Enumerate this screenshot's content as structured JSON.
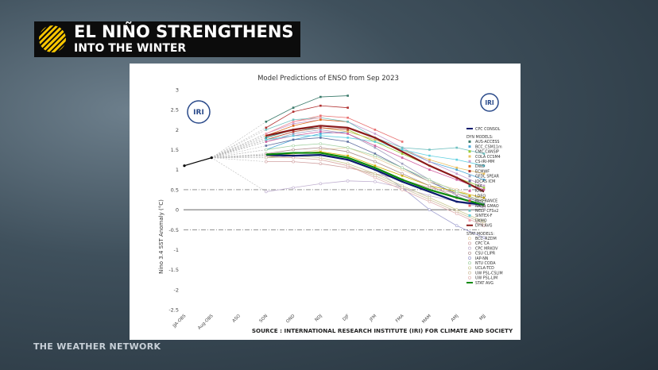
{
  "header": {
    "title": "EL NIÑO STRENGTHENS",
    "subtitle": "INTO THE WINTER"
  },
  "brand": "THE WEATHER NETWORK",
  "logos": [
    "IRI",
    "IRI"
  ],
  "chart_data": {
    "type": "line",
    "title": "Model Predictions of ENSO from Sep 2023",
    "ylabel": "Nino 3.4 SST Anomaly (°C)",
    "source": "SOURCE : INTERNATIONAL RESEARCH INSTITUTE (IRI) FOR CLIMATE AND SOCIETY",
    "categories": [
      "JJA-OBS",
      "Aug-OBS",
      "ASO",
      "SON",
      "OND",
      "NDJ",
      "DJF",
      "JFM",
      "FMA",
      "MAM",
      "AMJ",
      "MJJ"
    ],
    "ylim": [
      -2.5,
      3
    ],
    "yticks": [
      -2.5,
      -2,
      -1.5,
      -1,
      -0.5,
      0,
      0.5,
      1,
      1.5,
      2,
      2.5,
      3
    ],
    "threshold_lines": [
      -0.5,
      0.5
    ],
    "observed": {
      "color": "#000000",
      "values": [
        1.1,
        1.3,
        null,
        null,
        null,
        null,
        null,
        null,
        null,
        null,
        null,
        null
      ]
    },
    "groups": [
      {
        "marker": "square",
        "series": [
          {
            "name": "CPC CONSOL",
            "color": "#0a1a6e",
            "style": "bold",
            "values": [
              null,
              null,
              null,
              1.37,
              1.35,
              1.37,
              1.25,
              1.0,
              0.7,
              0.45,
              0.2,
              0.12
            ]
          }
        ]
      },
      {
        "name": "DYN MODELS:",
        "marker": "square",
        "series": [
          {
            "name": "AUS-ACCESS",
            "color": "#3a7a6a",
            "values": [
              null,
              null,
              null,
              2.2,
              2.55,
              2.82,
              2.85,
              null,
              null,
              null,
              null,
              null
            ]
          },
          {
            "name": "BCC_CSM11m",
            "color": "#4aa8d8",
            "values": [
              null,
              null,
              null,
              1.5,
              1.75,
              1.9,
              1.95,
              1.75,
              1.5,
              1.2,
              1.0,
              0.75
            ]
          },
          {
            "name": "CMC CANSIP",
            "color": "#9acd32",
            "values": [
              null,
              null,
              null,
              1.75,
              1.95,
              2.05,
              2.0,
              1.7,
              1.4,
              1.1,
              0.8,
              0.55
            ]
          },
          {
            "name": "COLA CCSM4",
            "color": "#e8c060",
            "values": [
              null,
              null,
              null,
              1.8,
              2.0,
              2.05,
              1.95,
              1.75,
              1.5,
              1.25,
              1.05,
              0.9
            ]
          },
          {
            "name": "CS-IRI-MM",
            "color": "#c8a0d0",
            "values": [
              null,
              null,
              null,
              1.9,
              2.15,
              2.25,
              2.2,
              1.9,
              1.55,
              1.2,
              0.9,
              0.6
            ]
          },
          {
            "name": "DWD",
            "color": "#e07020",
            "values": [
              null,
              null,
              null,
              1.85,
              2.1,
              2.25,
              2.2,
              null,
              null,
              null,
              null,
              null
            ]
          },
          {
            "name": "ECMWF",
            "color": "#b03030",
            "values": [
              null,
              null,
              null,
              2.05,
              2.45,
              2.6,
              2.55,
              null,
              null,
              null,
              null,
              null
            ]
          },
          {
            "name": "GFDL SPEAR",
            "color": "#a0a0c0",
            "values": [
              null,
              null,
              null,
              1.7,
              1.9,
              2.0,
              1.9,
              1.55,
              1.15,
              0.75,
              0.35,
              0.05
            ]
          },
          {
            "name": "JOCAS ICM",
            "color": "#6070a0",
            "values": [
              null,
              null,
              null,
              1.6,
              1.75,
              1.8,
              1.7,
              1.4,
              1.05,
              0.7,
              0.4,
              0.15
            ]
          },
          {
            "name": "JMA",
            "color": "#2f8f8f",
            "values": [
              null,
              null,
              null,
              1.8,
              2.0,
              2.05,
              null,
              null,
              null,
              null,
              null,
              null
            ]
          },
          {
            "name": "KMA",
            "color": "#d060a0",
            "values": [
              null,
              null,
              null,
              1.7,
              1.85,
              1.95,
              1.9,
              1.6,
              1.3,
              1.0,
              0.75,
              0.5
            ]
          },
          {
            "name": "LDEO",
            "color": "#d0b000",
            "values": [
              null,
              null,
              null,
              1.3,
              1.4,
              1.45,
              1.35,
              1.1,
              0.85,
              0.6,
              0.45,
              0.3
            ]
          },
          {
            "name": "MetFRANCE",
            "color": "#c04040",
            "values": [
              null,
              null,
              null,
              1.75,
              1.95,
              2.05,
              2.0,
              null,
              null,
              null,
              null,
              null
            ]
          },
          {
            "name": "NASA GMAO",
            "color": "#e87070",
            "values": [
              null,
              null,
              null,
              1.9,
              2.2,
              2.35,
              2.3,
              2.0,
              1.7,
              null,
              null,
              null
            ]
          },
          {
            "name": "NCEP CFSv2",
            "color": "#70c0c0",
            "values": [
              null,
              null,
              null,
              2.0,
              2.25,
              2.3,
              2.2,
              1.8,
              1.55,
              1.5,
              1.55,
              1.4
            ]
          },
          {
            "name": "SINTEX-F",
            "color": "#60d0e0",
            "values": [
              null,
              null,
              null,
              1.75,
              1.85,
              1.85,
              1.8,
              1.7,
              1.5,
              1.35,
              1.25,
              1.1
            ]
          },
          {
            "name": "UKMO",
            "color": "#f0a0b0",
            "values": [
              null,
              null,
              null,
              1.9,
              2.2,
              2.3,
              null,
              null,
              null,
              null,
              null,
              null
            ]
          },
          {
            "name": "DYN AVG",
            "color": "#8b1a1a",
            "style": "bold",
            "values": [
              null,
              null,
              null,
              1.85,
              2.0,
              2.1,
              2.05,
              1.8,
              1.45,
              1.1,
              0.8,
              0.45
            ]
          }
        ]
      },
      {
        "name": "STAT MODELS:",
        "marker": "circle",
        "series": [
          {
            "name": "BCC_RZDM",
            "color": "#e8cfa0",
            "values": [
              null,
              null,
              null,
              1.35,
              1.4,
              1.5,
              1.55,
              1.3,
              1.0,
              0.7,
              0.5,
              0.25
            ]
          },
          {
            "name": "CPC CA",
            "color": "#d0a0a0",
            "values": [
              null,
              null,
              null,
              1.2,
              1.2,
              1.15,
              1.05,
              0.9,
              0.75,
              0.55,
              0.4,
              0.2
            ]
          },
          {
            "name": "CPC MRKOV",
            "color": "#c0b0d0",
            "values": [
              null,
              null,
              null,
              0.45,
              0.55,
              0.65,
              0.72,
              0.7,
              0.55,
              0.35,
              0.2,
              0.05
            ]
          },
          {
            "name": "CSU CLIPR",
            "color": "#b09090",
            "values": [
              null,
              null,
              null,
              1.4,
              1.5,
              1.55,
              1.45,
              1.2,
              0.9,
              0.6,
              0.3,
              0.1
            ]
          },
          {
            "name": "IAP-NN",
            "color": "#a0a0d0",
            "values": [
              null,
              null,
              null,
              1.3,
              1.35,
              1.35,
              1.25,
              1.0,
              0.55,
              0.0,
              -0.4,
              -0.7
            ]
          },
          {
            "name": "NTU CODA",
            "color": "#a0d0a0",
            "values": [
              null,
              null,
              null,
              1.5,
              1.6,
              1.65,
              1.55,
              1.35,
              1.05,
              0.75,
              0.45,
              0.2
            ]
          },
          {
            "name": "UCLA-TCD",
            "color": "#c8c890",
            "values": [
              null,
              null,
              null,
              1.35,
              1.35,
              1.3,
              1.15,
              0.9,
              0.6,
              0.3,
              0.0,
              -0.3
            ]
          },
          {
            "name": "UW PSL-CSLIM",
            "color": "#d0c0a0",
            "values": [
              null,
              null,
              null,
              1.3,
              1.3,
              1.25,
              1.1,
              0.85,
              0.55,
              0.25,
              -0.05,
              -0.35
            ]
          },
          {
            "name": "UW PSL-LIM",
            "color": "#e0b0b0",
            "values": [
              null,
              null,
              null,
              1.35,
              1.3,
              1.25,
              1.1,
              0.8,
              0.5,
              0.2,
              -0.1,
              -0.4
            ]
          },
          {
            "name": "STAT AVG",
            "color": "#0b8a0b",
            "style": "bold",
            "values": [
              null,
              null,
              null,
              1.38,
              1.42,
              1.42,
              1.3,
              1.05,
              0.75,
              0.5,
              0.3,
              0.12
            ]
          }
        ]
      }
    ]
  }
}
